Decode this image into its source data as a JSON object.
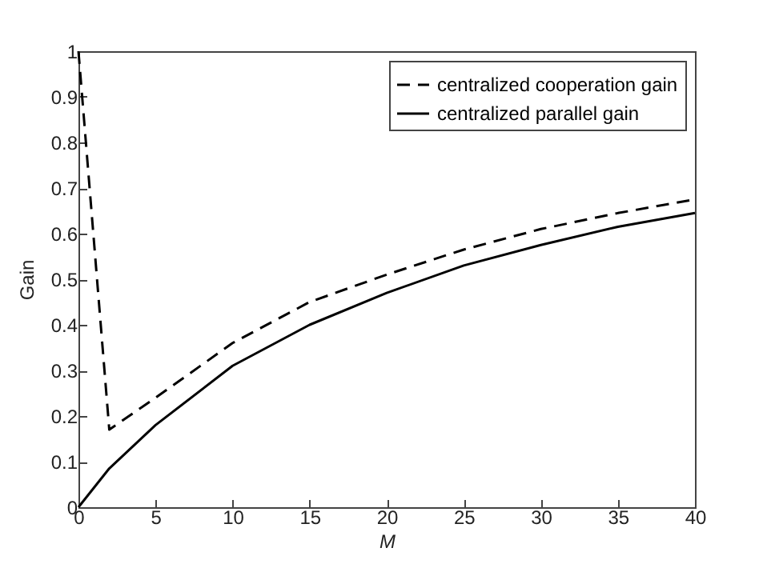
{
  "chart_data": {
    "type": "line",
    "xlabel": "M",
    "ylabel": "Gain",
    "x": [
      0,
      2,
      5,
      10,
      15,
      20,
      25,
      30,
      35,
      40
    ],
    "series": [
      {
        "name": "centralized cooperation gain",
        "color": "#000000",
        "line_style": "dashed",
        "values": [
          1,
          0.17,
          0.24,
          0.36,
          0.45,
          0.51,
          0.565,
          0.61,
          0.645,
          0.675
        ]
      },
      {
        "name": "centralized parallel gain",
        "color": "#000000",
        "line_style": "solid",
        "values": [
          0,
          0.085,
          0.18,
          0.31,
          0.4,
          0.47,
          0.53,
          0.575,
          0.615,
          0.645
        ]
      }
    ],
    "xlim": [
      0,
      40
    ],
    "xticks": [
      0,
      5,
      10,
      15,
      20,
      25,
      30,
      35,
      40
    ],
    "ylim": [
      0,
      1
    ],
    "yticks": [
      0,
      0.1,
      0.2,
      0.3,
      0.4,
      0.5,
      0.6,
      0.7,
      0.8,
      0.9,
      1
    ],
    "legend": "top right",
    "grid": false
  }
}
